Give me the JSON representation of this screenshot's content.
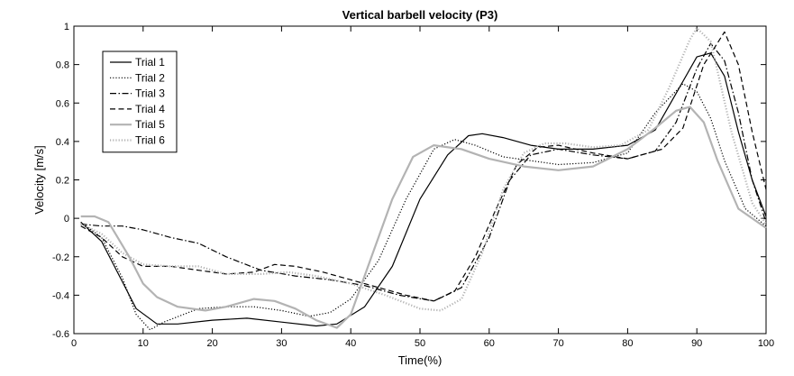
{
  "chart_data": {
    "type": "line",
    "title": "Vertical barbell velocity (P3)",
    "xlabel": "Time(%)",
    "ylabel": "Velocity [m/s]",
    "xlim": [
      0,
      100
    ],
    "ylim": [
      -0.6,
      1
    ],
    "xticks": [
      "0",
      "10",
      "20",
      "30",
      "40",
      "50",
      "60",
      "70",
      "80",
      "90",
      "100"
    ],
    "yticks": [
      "-0.6",
      "-0.4",
      "-0.2",
      "0",
      "0.2",
      "0.4",
      "0.6",
      "0.8",
      "1"
    ],
    "grid": false,
    "legend_position": "top-left",
    "series": [
      {
        "name": "Trial 1",
        "color": "#000000",
        "line_style": "solid",
        "points": [
          [
            1,
            -0.02
          ],
          [
            4,
            -0.12
          ],
          [
            7,
            -0.33
          ],
          [
            9,
            -0.47
          ],
          [
            12,
            -0.55
          ],
          [
            15,
            -0.55
          ],
          [
            20,
            -0.53
          ],
          [
            25,
            -0.52
          ],
          [
            30,
            -0.54
          ],
          [
            35,
            -0.56
          ],
          [
            38,
            -0.55
          ],
          [
            42,
            -0.46
          ],
          [
            46,
            -0.25
          ],
          [
            50,
            0.1
          ],
          [
            54,
            0.33
          ],
          [
            57,
            0.43
          ],
          [
            59,
            0.44
          ],
          [
            62,
            0.42
          ],
          [
            66,
            0.38
          ],
          [
            70,
            0.36
          ],
          [
            75,
            0.36
          ],
          [
            80,
            0.38
          ],
          [
            84,
            0.46
          ],
          [
            87,
            0.65
          ],
          [
            90,
            0.84
          ],
          [
            92,
            0.86
          ],
          [
            94,
            0.74
          ],
          [
            96,
            0.45
          ],
          [
            98,
            0.2
          ],
          [
            100,
            0.01
          ]
        ]
      },
      {
        "name": "Trial 2",
        "color": "#000000",
        "line_style": "dotted",
        "points": [
          [
            1,
            -0.02
          ],
          [
            4,
            -0.1
          ],
          [
            7,
            -0.31
          ],
          [
            9,
            -0.5
          ],
          [
            11,
            -0.58
          ],
          [
            13,
            -0.54
          ],
          [
            18,
            -0.47
          ],
          [
            22,
            -0.46
          ],
          [
            26,
            -0.46
          ],
          [
            30,
            -0.48
          ],
          [
            34,
            -0.51
          ],
          [
            37,
            -0.49
          ],
          [
            40,
            -0.42
          ],
          [
            44,
            -0.22
          ],
          [
            48,
            0.1
          ],
          [
            52,
            0.36
          ],
          [
            55,
            0.41
          ],
          [
            58,
            0.38
          ],
          [
            62,
            0.32
          ],
          [
            66,
            0.3
          ],
          [
            70,
            0.28
          ],
          [
            75,
            0.29
          ],
          [
            80,
            0.34
          ],
          [
            84,
            0.55
          ],
          [
            88,
            0.7
          ],
          [
            90,
            0.66
          ],
          [
            92,
            0.52
          ],
          [
            94,
            0.3
          ],
          [
            97,
            0.05
          ],
          [
            100,
            -0.04
          ]
        ]
      },
      {
        "name": "Trial 3",
        "color": "#000000",
        "line_style": "dashdot",
        "points": [
          [
            1,
            -0.03
          ],
          [
            4,
            -0.04
          ],
          [
            7,
            -0.04
          ],
          [
            10,
            -0.06
          ],
          [
            14,
            -0.1
          ],
          [
            18,
            -0.13
          ],
          [
            22,
            -0.2
          ],
          [
            27,
            -0.27
          ],
          [
            32,
            -0.3
          ],
          [
            37,
            -0.32
          ],
          [
            42,
            -0.35
          ],
          [
            47,
            -0.4
          ],
          [
            52,
            -0.43
          ],
          [
            56,
            -0.36
          ],
          [
            60,
            -0.1
          ],
          [
            63,
            0.2
          ],
          [
            66,
            0.33
          ],
          [
            70,
            0.36
          ],
          [
            75,
            0.33
          ],
          [
            80,
            0.31
          ],
          [
            84,
            0.35
          ],
          [
            87,
            0.5
          ],
          [
            90,
            0.78
          ],
          [
            92,
            0.91
          ],
          [
            94,
            0.82
          ],
          [
            96,
            0.55
          ],
          [
            98,
            0.2
          ],
          [
            100,
            -0.02
          ]
        ]
      },
      {
        "name": "Trial 4",
        "color": "#000000",
        "line_style": "dashed",
        "points": [
          [
            1,
            -0.04
          ],
          [
            4,
            -0.1
          ],
          [
            7,
            -0.2
          ],
          [
            10,
            -0.25
          ],
          [
            14,
            -0.25
          ],
          [
            18,
            -0.27
          ],
          [
            22,
            -0.29
          ],
          [
            26,
            -0.28
          ],
          [
            29,
            -0.24
          ],
          [
            32,
            -0.25
          ],
          [
            36,
            -0.28
          ],
          [
            42,
            -0.34
          ],
          [
            48,
            -0.4
          ],
          [
            52,
            -0.43
          ],
          [
            55,
            -0.38
          ],
          [
            58,
            -0.2
          ],
          [
            61,
            0.05
          ],
          [
            64,
            0.28
          ],
          [
            67,
            0.37
          ],
          [
            70,
            0.38
          ],
          [
            75,
            0.34
          ],
          [
            80,
            0.31
          ],
          [
            85,
            0.36
          ],
          [
            88,
            0.47
          ],
          [
            91,
            0.8
          ],
          [
            94,
            0.97
          ],
          [
            96,
            0.8
          ],
          [
            98,
            0.45
          ],
          [
            100,
            0.15
          ]
        ]
      },
      {
        "name": "Trial 5",
        "color": "#b3b3b3",
        "line_style": "solid",
        "points": [
          [
            1,
            0.01
          ],
          [
            3,
            0.01
          ],
          [
            5,
            -0.02
          ],
          [
            8,
            -0.2
          ],
          [
            10,
            -0.34
          ],
          [
            12,
            -0.41
          ],
          [
            15,
            -0.46
          ],
          [
            19,
            -0.48
          ],
          [
            22,
            -0.46
          ],
          [
            26,
            -0.42
          ],
          [
            29,
            -0.43
          ],
          [
            32,
            -0.47
          ],
          [
            35,
            -0.53
          ],
          [
            38,
            -0.57
          ],
          [
            40,
            -0.5
          ],
          [
            43,
            -0.2
          ],
          [
            46,
            0.1
          ],
          [
            49,
            0.32
          ],
          [
            52,
            0.38
          ],
          [
            56,
            0.36
          ],
          [
            60,
            0.31
          ],
          [
            65,
            0.27
          ],
          [
            70,
            0.25
          ],
          [
            75,
            0.27
          ],
          [
            80,
            0.36
          ],
          [
            84,
            0.47
          ],
          [
            87,
            0.56
          ],
          [
            89,
            0.58
          ],
          [
            91,
            0.5
          ],
          [
            93,
            0.3
          ],
          [
            96,
            0.05
          ],
          [
            100,
            -0.05
          ]
        ]
      },
      {
        "name": "Trial 6",
        "color": "#b3b3b3",
        "line_style": "dotted",
        "points": [
          [
            1,
            -0.03
          ],
          [
            4,
            -0.08
          ],
          [
            7,
            -0.18
          ],
          [
            10,
            -0.24
          ],
          [
            14,
            -0.25
          ],
          [
            18,
            -0.25
          ],
          [
            22,
            -0.29
          ],
          [
            27,
            -0.29
          ],
          [
            31,
            -0.28
          ],
          [
            35,
            -0.3
          ],
          [
            40,
            -0.34
          ],
          [
            45,
            -0.4
          ],
          [
            50,
            -0.47
          ],
          [
            53,
            -0.48
          ],
          [
            56,
            -0.42
          ],
          [
            59,
            -0.18
          ],
          [
            62,
            0.15
          ],
          [
            65,
            0.34
          ],
          [
            68,
            0.39
          ],
          [
            71,
            0.39
          ],
          [
            75,
            0.37
          ],
          [
            79,
            0.38
          ],
          [
            83,
            0.46
          ],
          [
            86,
            0.68
          ],
          [
            89,
            0.93
          ],
          [
            90,
            0.99
          ],
          [
            92,
            0.92
          ],
          [
            95,
            0.45
          ],
          [
            98,
            0.08
          ],
          [
            100,
            -0.03
          ]
        ]
      }
    ]
  }
}
